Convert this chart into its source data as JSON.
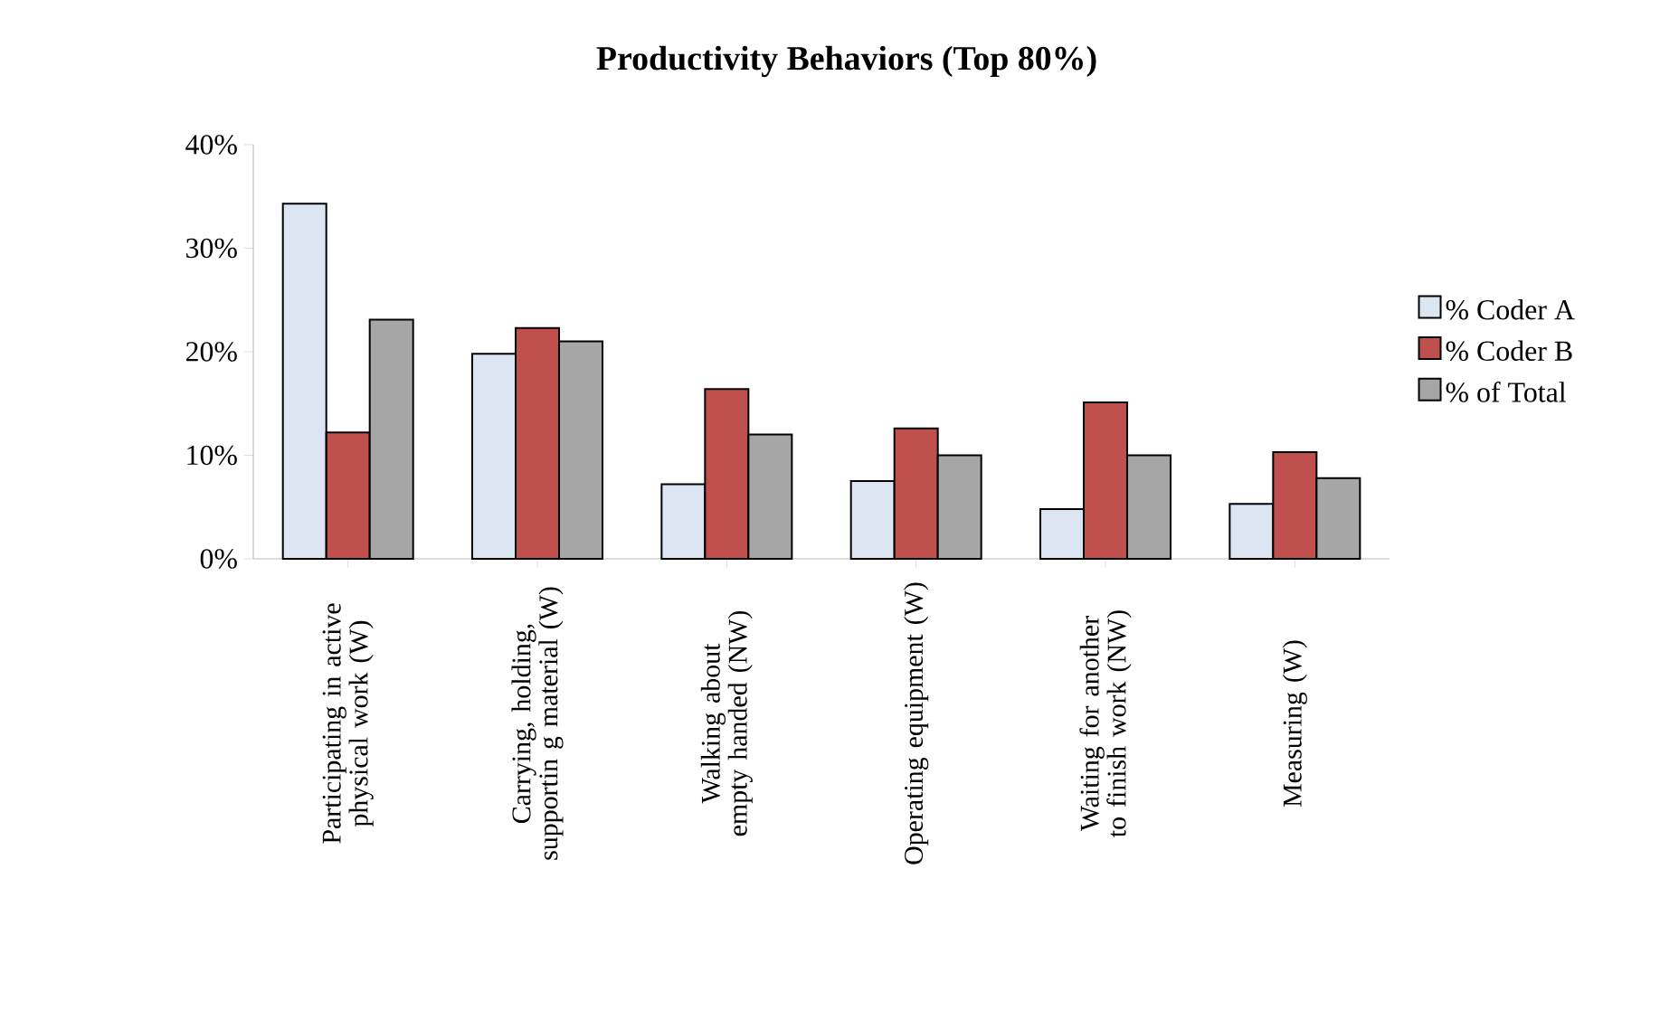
{
  "chart_data": {
    "type": "bar",
    "title": "Productivity Behaviors (Top 80%)",
    "categories": [
      "Participating in active physical work (W)",
      "Carrying, holding, supportin g material (W)",
      "Walking about empty handed (NW)",
      "Operating equipment (W)",
      "Waiting for another to finish work (NW)",
      "Measuring (W)"
    ],
    "series": [
      {
        "name": "% Coder A",
        "color": "#dce6f2",
        "values": [
          34.3,
          19.8,
          7.2,
          7.5,
          4.8,
          5.3
        ]
      },
      {
        "name": "% Coder B",
        "color": "#c0504d",
        "values": [
          12.2,
          22.3,
          16.4,
          12.6,
          15.1,
          10.3
        ]
      },
      {
        "name": "% of Total",
        "color": "#a6a6a6",
        "values": [
          23.1,
          21.0,
          12.0,
          10.0,
          10.0,
          7.8
        ]
      }
    ],
    "ylim": [
      0,
      40
    ],
    "yticks": [
      {
        "value": 0,
        "label": "0%"
      },
      {
        "value": 10,
        "label": "10%"
      },
      {
        "value": 20,
        "label": "20%"
      },
      {
        "value": 30,
        "label": "30%"
      },
      {
        "value": 40,
        "label": "40%"
      }
    ],
    "legend": "right",
    "grid": false
  }
}
